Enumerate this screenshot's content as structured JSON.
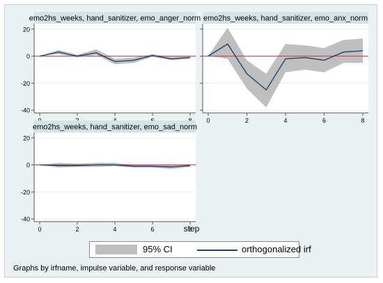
{
  "chart_data": {
    "type": "line",
    "x_axis_label": "step",
    "x_ticks": [
      0,
      2,
      4,
      6,
      8
    ],
    "y_ticks": [
      -40,
      -20,
      0,
      20
    ],
    "xlim": [
      0,
      8
    ],
    "ylim": [
      -42,
      24
    ],
    "zero_line_color": "#d9344a",
    "line_color": "#1a476f",
    "band_color": "#bfbfbf",
    "panels": [
      {
        "title": "emo2hs_weeks, hand_sanitizer, emo_anger_norm",
        "x": [
          0,
          1,
          2,
          3,
          4,
          5,
          6,
          7,
          8
        ],
        "irf": [
          0,
          3,
          0,
          2.5,
          -4,
          -3,
          0.5,
          -2,
          -1
        ],
        "ci_lo": [
          0,
          1.5,
          -1,
          1,
          -6,
          -5,
          -0.5,
          -3,
          -2
        ],
        "ci_hi": [
          0,
          4.5,
          1,
          5,
          -2,
          -1,
          1.5,
          -0.5,
          0
        ]
      },
      {
        "title": "emo2hs_weeks, hand_sanitizer, emo_anx_norm",
        "x": [
          0,
          1,
          2,
          3,
          4,
          5,
          6,
          7,
          8
        ],
        "irf": [
          0,
          9,
          -13,
          -25,
          -2,
          -1,
          -3,
          3,
          4
        ],
        "ci_lo": [
          0,
          -2,
          -24,
          -38,
          -12,
          -10,
          -12,
          -5,
          -5
        ],
        "ci_hi": [
          0,
          21,
          -3,
          -13,
          9,
          8,
          6,
          12,
          13
        ]
      },
      {
        "title": "emo2hs_weeks, hand_sanitizer, emo_sad_norm",
        "x": [
          0,
          1,
          2,
          3,
          4,
          5,
          6,
          7,
          8
        ],
        "irf": [
          0,
          -0.5,
          -0.5,
          0,
          0,
          -1,
          -1,
          -1.5,
          -0.5
        ],
        "ci_lo": [
          0,
          -2,
          -1.5,
          -1.5,
          -1,
          -2,
          -2,
          -3,
          -1.5
        ],
        "ci_hi": [
          0,
          1.5,
          1,
          1.5,
          1.5,
          0,
          0,
          0,
          0.5
        ]
      }
    ],
    "legend": [
      {
        "label": "95% CI",
        "kind": "band"
      },
      {
        "label": "orthogonalized irf",
        "kind": "line"
      }
    ],
    "legend_position": "bottom",
    "note": "Graphs by irfname, impulse variable, and response variable"
  }
}
